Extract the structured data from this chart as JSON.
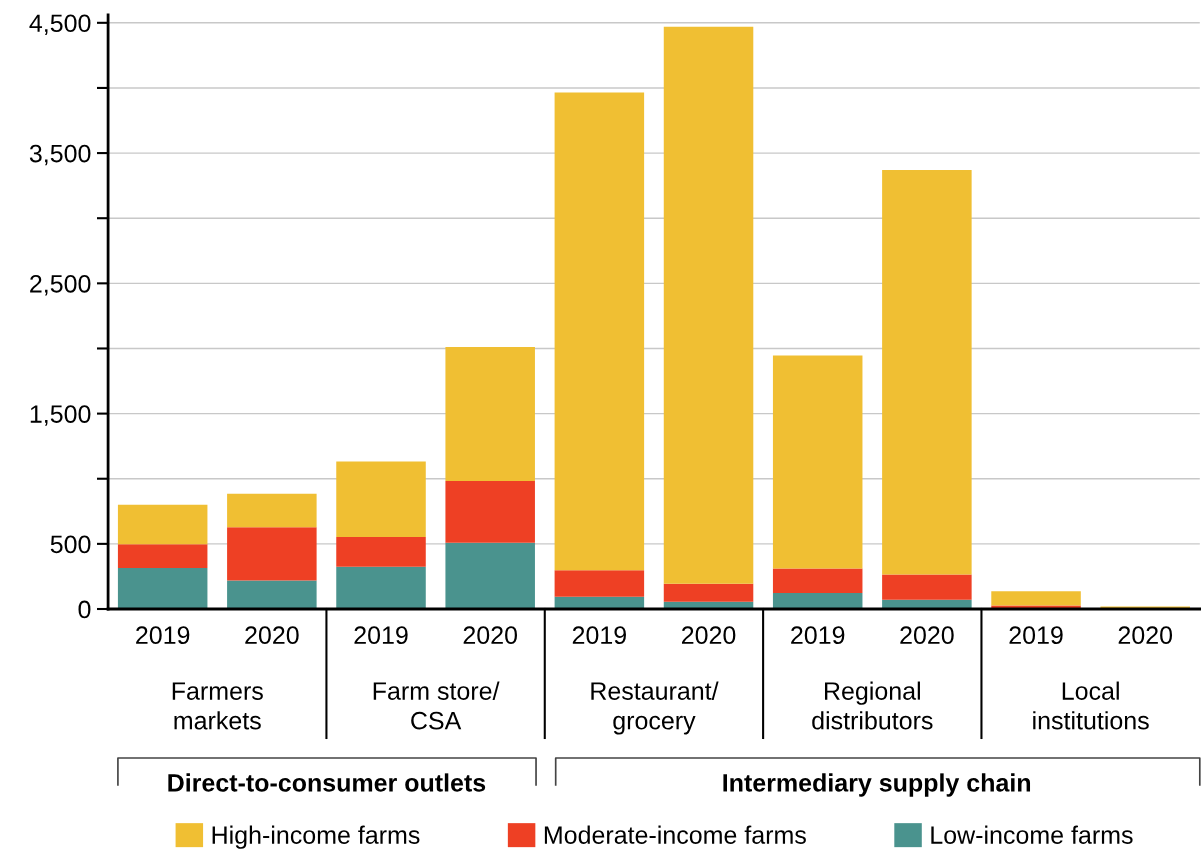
{
  "chart_data": {
    "type": "bar",
    "stacked": true,
    "categories": [
      "2019",
      "2020",
      "2019",
      "2020",
      "2019",
      "2020",
      "2019",
      "2020",
      "2019",
      "2020"
    ],
    "series": [
      {
        "name": "Low-income farms",
        "color": "#4a938e",
        "values": [
          315,
          218,
          324,
          509,
          94,
          55,
          123,
          71,
          3,
          2
        ]
      },
      {
        "name": "Moderate-income farms",
        "color": "#ee4024",
        "values": [
          182,
          409,
          228,
          473,
          204,
          139,
          188,
          194,
          23,
          4
        ]
      },
      {
        "name": "High-income farms",
        "color": "#f0bf33",
        "values": [
          303,
          258,
          581,
          1030,
          3667,
          4275,
          1635,
          3106,
          110,
          13
        ]
      }
    ],
    "ylim": [
      0,
      4560
    ],
    "yticks": [
      0,
      500,
      {
        "value": 1000,
        "label": null
      },
      {
        "value": 1500,
        "label": "1,500"
      },
      {
        "value": 2000,
        "label": null
      },
      {
        "value": 2500,
        "label": "2,500"
      },
      {
        "value": 3000,
        "label": null
      },
      {
        "value": 3500,
        "label": "3,500"
      },
      {
        "value": 4000,
        "label": null
      },
      {
        "value": 4500,
        "label": "4,500"
      }
    ],
    "annotations": [
      "Farmers\nmarkets",
      "Farm store/\nCSA",
      "Restaurant/\ngrocery",
      "Regional\ndistributors",
      "Local\ninstitutions",
      "Direct-to-consumer outlets",
      "Intermediary supply chain"
    ],
    "grid": "y",
    "legend": "bottom"
  }
}
